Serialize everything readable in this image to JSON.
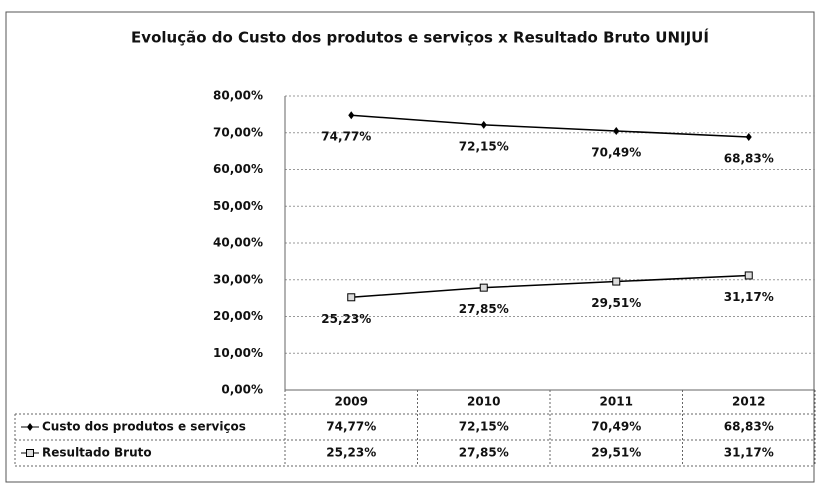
{
  "chart_data": {
    "type": "line",
    "title": "Evolução do Custo dos produtos e serviços x Resultado Bruto UNIJUÍ",
    "categories": [
      "2009",
      "2010",
      "2011",
      "2012"
    ],
    "series": [
      {
        "name": "Custo dos produtos e serviços",
        "color": "#000000",
        "marker": "diamond",
        "values": [
          74.77,
          72.15,
          70.49,
          68.83
        ],
        "value_labels": [
          "74,77%",
          "72,15%",
          "70,49%",
          "68,83%"
        ]
      },
      {
        "name": "Resultado Bruto",
        "color": "#000000",
        "marker": "square",
        "values": [
          25.23,
          27.85,
          29.51,
          31.17
        ],
        "value_labels": [
          "25,23%",
          "27,85%",
          "29,51%",
          "31,17%"
        ]
      }
    ],
    "ylim": [
      0,
      80
    ],
    "yticks": [
      {
        "value": 0,
        "label": "0,00%"
      },
      {
        "value": 10,
        "label": "10,00%"
      },
      {
        "value": 20,
        "label": "20,00%"
      },
      {
        "value": 30,
        "label": "30,00%"
      },
      {
        "value": 40,
        "label": "40,00%"
      },
      {
        "value": 50,
        "label": "50,00%"
      },
      {
        "value": 60,
        "label": "60,00%"
      },
      {
        "value": 70,
        "label": "70,00%"
      },
      {
        "value": 80,
        "label": "80,00%"
      }
    ],
    "grid": true,
    "data_table": true
  }
}
